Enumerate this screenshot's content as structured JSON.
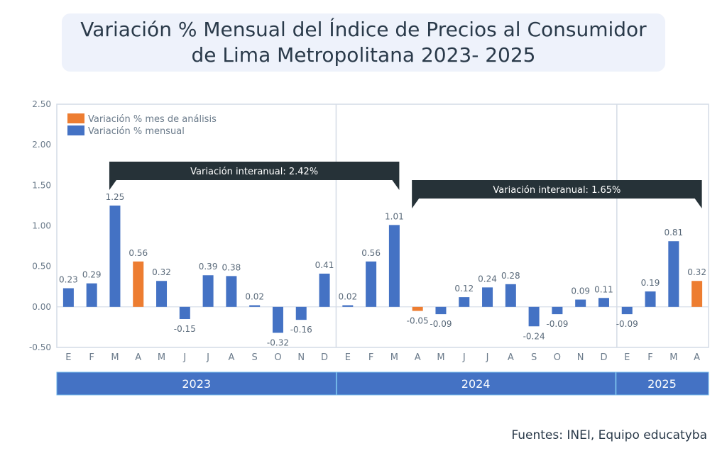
{
  "title": {
    "line1": "Variación % Mensual del Índice de Precios al Consumidor",
    "line2": "de Lima Metropolitana 2023- 2025"
  },
  "source": "Fuentes: INEI, Equipo educatyba",
  "colors": {
    "normal": "#4472c4",
    "highlight": "#ed7d31",
    "annotation": "#263238",
    "year_band": "#4472c4"
  },
  "chart_data": {
    "type": "bar",
    "ylim": [
      -0.5,
      2.5
    ],
    "y_ticks": [
      "2.50",
      "2.00",
      "1.50",
      "1.00",
      "0.50",
      "0.00",
      "-0.50"
    ],
    "legend": [
      "Variación % mes de análisis",
      "Variación % mensual"
    ],
    "categories": [
      "E",
      "F",
      "M",
      "A",
      "M",
      "J",
      "J",
      "A",
      "S",
      "O",
      "N",
      "D",
      "E",
      "F",
      "M",
      "A",
      "M",
      "J",
      "J",
      "A",
      "S",
      "O",
      "N",
      "D",
      "E",
      "F",
      "M",
      "A"
    ],
    "values": [
      0.23,
      0.29,
      1.25,
      0.56,
      0.32,
      -0.15,
      0.39,
      0.38,
      0.02,
      -0.32,
      -0.16,
      0.41,
      0.02,
      0.56,
      1.01,
      -0.05,
      -0.09,
      0.12,
      0.24,
      0.28,
      -0.24,
      -0.09,
      0.09,
      0.11,
      -0.09,
      0.19,
      0.81,
      0.32
    ],
    "value_labels": [
      "0.23",
      "0.29",
      "1.25",
      "0.56",
      "0.32",
      "-0.15",
      "0.39",
      "0.38",
      "0.02",
      "-0.32",
      "-0.16",
      "0.41",
      "0.02",
      "0.56",
      "1.01",
      "-0.05",
      "-0.09",
      "0.12",
      "0.24",
      "0.28",
      "-0.24",
      "-0.09",
      "0.09",
      "0.11",
      "-0.09",
      "0.19",
      "0.81",
      "0.32"
    ],
    "highlight_indices": [
      3,
      15,
      27
    ],
    "years": [
      {
        "label": "2023",
        "start": 0,
        "count": 12
      },
      {
        "label": "2024",
        "start": 12,
        "count": 12
      },
      {
        "label": "2025",
        "start": 24,
        "count": 4
      }
    ],
    "annotations": [
      {
        "text": "Variación interanual: 2.42%",
        "from": 2,
        "to": 14
      },
      {
        "text": "Variación interanual: 1.65%",
        "from": 15,
        "to": 27
      }
    ]
  }
}
